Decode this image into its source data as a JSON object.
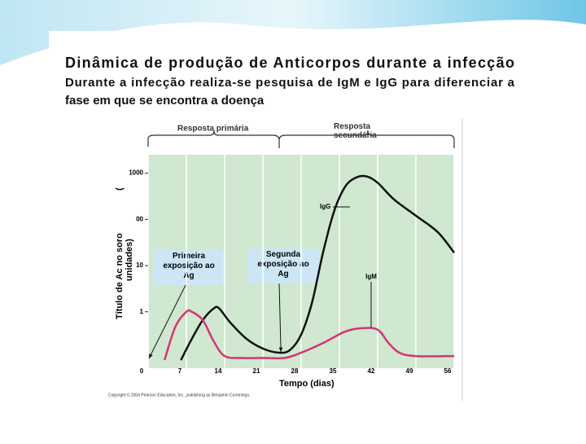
{
  "heading": {
    "title": "Dinâmica de produção de Anticorpos durante a infecção",
    "lines": [
      "Durante a infecção realiza-se pesquisa de IgM e IgG  para diferenciar a",
      "fase em que se encontra a doença"
    ]
  },
  "chart_data": {
    "type": "line",
    "x_label": "Tempo (dias)",
    "y_label_lines": [
      "Título de Ac no soro",
      "unidades)"
    ],
    "y_label_paren": "(",
    "phases": [
      "Resposta primária",
      "Resposta secundária"
    ],
    "annotations": [
      {
        "text": "Primeira exposição ao Ag",
        "x": 0
      },
      {
        "text": "Segunda exposição ao Ag",
        "x": 24
      }
    ],
    "copyright": "Copyright © 2004 Pearson Education, Inc., publishing as Benjamin Cummings.",
    "log_y": true,
    "grid": "x",
    "xlim": [
      0,
      56
    ],
    "xticks": [
      0,
      7,
      14,
      21,
      28,
      35,
      42,
      49,
      56
    ],
    "ylim": [
      0.06,
      2500
    ],
    "yticks": [
      1,
      10,
      {
        "value": 100,
        "label": "00"
      },
      1000
    ],
    "series": [
      {
        "name": "IgG",
        "color": "#111111",
        "x": [
          6,
          8,
          10,
          12,
          13,
          15,
          18,
          21,
          24,
          26,
          28,
          30,
          32,
          34,
          36,
          38,
          40,
          42,
          45,
          49,
          53,
          56
        ],
        "values": [
          0.09,
          0.26,
          0.66,
          1.18,
          1.18,
          0.59,
          0.26,
          0.16,
          0.13,
          0.15,
          0.32,
          1.6,
          19,
          146,
          500,
          800,
          850,
          620,
          270,
          120,
          53,
          19
        ]
      },
      {
        "name": "IgM",
        "color": "#d6337a",
        "x": [
          3,
          5,
          7,
          8,
          10,
          12,
          14,
          17,
          21,
          25,
          28,
          32,
          36,
          39,
          42,
          44,
          46,
          49,
          56
        ],
        "values": [
          0.09,
          0.48,
          1,
          1,
          0.66,
          0.23,
          0.11,
          0.1,
          0.1,
          0.1,
          0.13,
          0.21,
          0.37,
          0.44,
          0.41,
          0.21,
          0.13,
          0.11,
          0.11
        ]
      }
    ]
  }
}
